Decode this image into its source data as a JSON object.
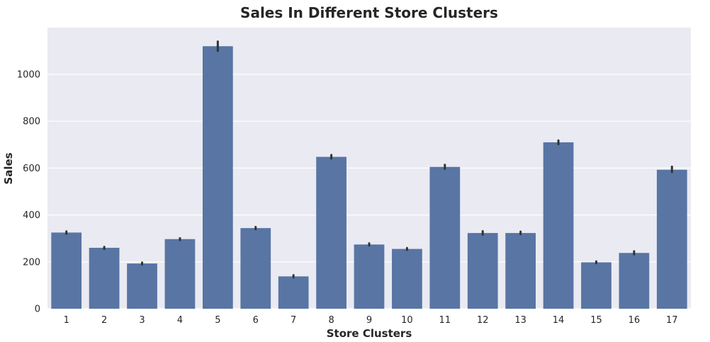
{
  "chart_data": {
    "type": "bar",
    "title": "Sales In Different Store Clusters",
    "xlabel": "Store Clusters",
    "ylabel": "Sales",
    "categories": [
      "1",
      "2",
      "3",
      "4",
      "5",
      "6",
      "7",
      "8",
      "9",
      "10",
      "11",
      "12",
      "13",
      "14",
      "15",
      "16",
      "17"
    ],
    "values": [
      325,
      260,
      193,
      297,
      1120,
      344,
      138,
      648,
      274,
      255,
      605,
      323,
      323,
      710,
      198,
      238,
      593
    ],
    "error_bars": [
      [
        320,
        330
      ],
      [
        255,
        264
      ],
      [
        189,
        197
      ],
      [
        293,
        301
      ],
      [
        1100,
        1140
      ],
      [
        339,
        349
      ],
      [
        134,
        143
      ],
      [
        641,
        656
      ],
      [
        270,
        279
      ],
      [
        251,
        259
      ],
      [
        597,
        614
      ],
      [
        316,
        331
      ],
      [
        318,
        329
      ],
      [
        702,
        718
      ],
      [
        194,
        202
      ],
      [
        232,
        245
      ],
      [
        583,
        606
      ]
    ],
    "ylim": [
      0,
      1200
    ],
    "yticks": [
      0,
      200,
      400,
      600,
      800,
      1000
    ],
    "ytick_labels": [
      "0",
      "200",
      "400",
      "600",
      "800",
      "1000"
    ],
    "grid": true,
    "bar_color": "#5875a4",
    "background_color": "#eaeaf2"
  }
}
